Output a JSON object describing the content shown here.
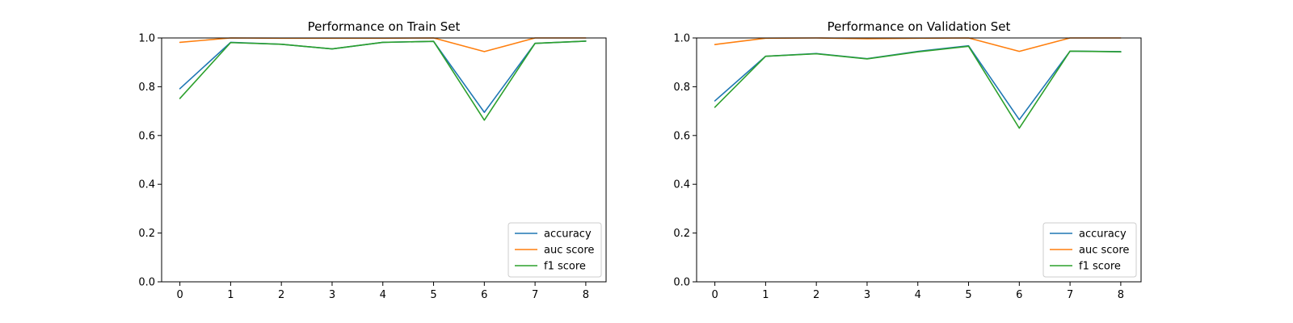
{
  "chart_data": [
    {
      "type": "line",
      "title": "Performance on Train Set",
      "xlabel": "",
      "ylabel": "",
      "x": [
        0,
        1,
        2,
        3,
        4,
        5,
        6,
        7,
        8
      ],
      "xlim": [
        -0.36,
        8.4
      ],
      "ylim": [
        0.0,
        1.0
      ],
      "xticks": [
        "0",
        "1",
        "2",
        "3",
        "4",
        "5",
        "6",
        "7",
        "8"
      ],
      "yticks": [
        "0.0",
        "0.2",
        "0.4",
        "0.6",
        "0.8",
        "1.0"
      ],
      "grid": false,
      "legend_position": "lower right",
      "series": [
        {
          "name": "accuracy",
          "color": "#1f77b4",
          "values": [
            0.792,
            0.982,
            0.974,
            0.955,
            0.982,
            0.986,
            0.695,
            0.978,
            0.987
          ]
        },
        {
          "name": "auc score",
          "color": "#ff7f0e",
          "values": [
            0.982,
            1.0,
            0.999,
            0.999,
            0.999,
            1.0,
            0.944,
            1.0,
            1.0
          ]
        },
        {
          "name": "f1 score",
          "color": "#2ca02c",
          "values": [
            0.752,
            0.981,
            0.974,
            0.955,
            0.982,
            0.986,
            0.663,
            0.978,
            0.987
          ]
        }
      ]
    },
    {
      "type": "line",
      "title": "Performance on Validation Set",
      "xlabel": "",
      "ylabel": "",
      "x": [
        0,
        1,
        2,
        3,
        4,
        5,
        6,
        7,
        8
      ],
      "xlim": [
        -0.36,
        8.4
      ],
      "ylim": [
        0.0,
        1.0
      ],
      "xticks": [
        "0",
        "1",
        "2",
        "3",
        "4",
        "5",
        "6",
        "7",
        "8"
      ],
      "yticks": [
        "0.0",
        "0.2",
        "0.4",
        "0.6",
        "0.8",
        "1.0"
      ],
      "grid": false,
      "legend_position": "lower right",
      "series": [
        {
          "name": "accuracy",
          "color": "#1f77b4",
          "values": [
            0.742,
            0.925,
            0.936,
            0.915,
            0.945,
            0.968,
            0.665,
            0.946,
            0.944
          ]
        },
        {
          "name": "auc score",
          "color": "#ff7f0e",
          "values": [
            0.973,
            0.999,
            1.0,
            0.997,
            0.999,
            1.0,
            0.945,
            1.0,
            1.0
          ]
        },
        {
          "name": "f1 score",
          "color": "#2ca02c",
          "values": [
            0.716,
            0.925,
            0.935,
            0.914,
            0.943,
            0.966,
            0.63,
            0.946,
            0.943
          ]
        }
      ]
    }
  ]
}
